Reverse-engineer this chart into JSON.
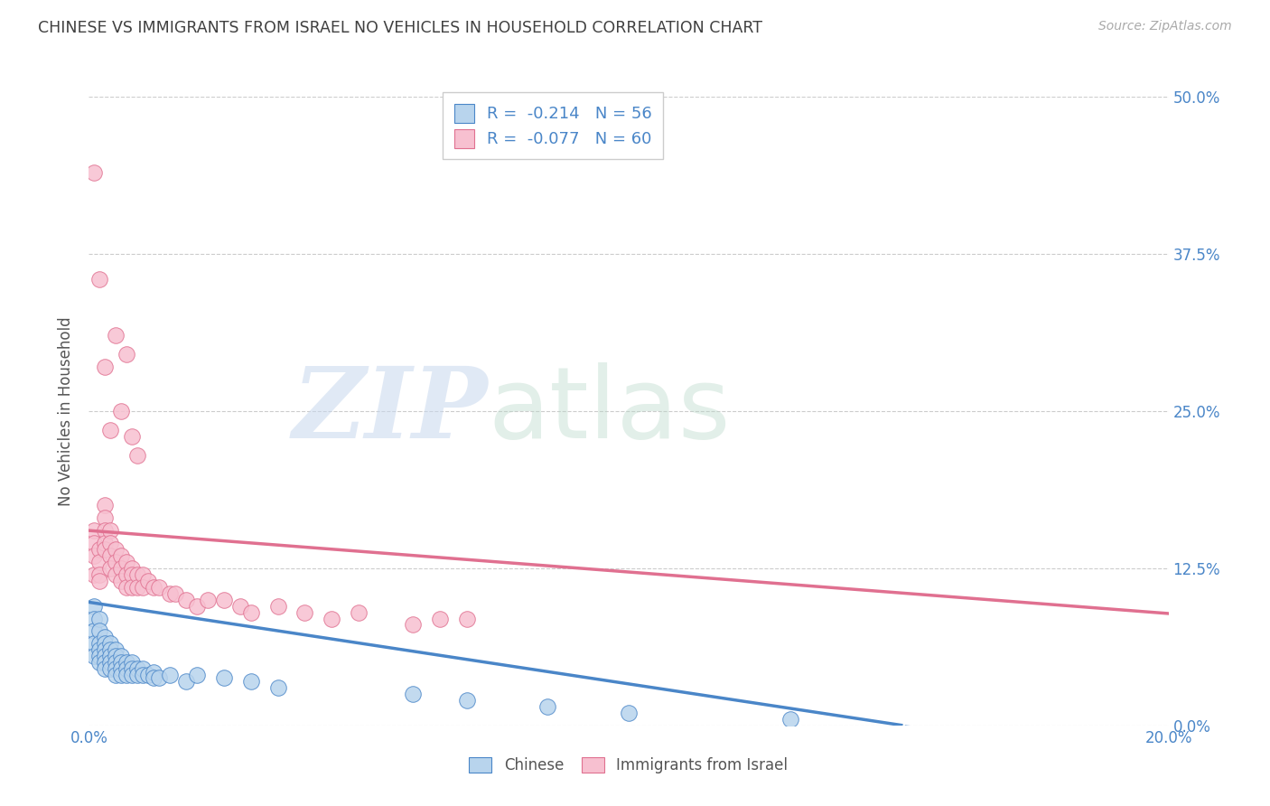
{
  "title": "CHINESE VS IMMIGRANTS FROM ISRAEL NO VEHICLES IN HOUSEHOLD CORRELATION CHART",
  "source": "Source: ZipAtlas.com",
  "ylabel": "No Vehicles in Household",
  "watermark_zip": "ZIP",
  "watermark_atlas": "atlas",
  "xlim": [
    0.0,
    0.2
  ],
  "ylim": [
    0.0,
    0.5
  ],
  "xtick_positions": [
    0.0,
    0.2
  ],
  "xtick_labels": [
    "0.0%",
    "20.0%"
  ],
  "ytick_positions": [
    0.0,
    0.125,
    0.25,
    0.375,
    0.5
  ],
  "ytick_labels": [
    "0.0%",
    "12.5%",
    "25.0%",
    "37.5%",
    "50.0%"
  ],
  "legend_labels": [
    "Chinese",
    "Immigrants from Israel"
  ],
  "series1_facecolor": "#b8d4ed",
  "series2_facecolor": "#f7c0d0",
  "line1_color": "#4a86c8",
  "line2_color": "#e07090",
  "R1": -0.214,
  "N1": 56,
  "R2": -0.077,
  "N2": 60,
  "background_color": "#ffffff",
  "grid_color": "#cccccc",
  "title_color": "#404040",
  "tick_color": "#4a86c8",
  "source_color": "#aaaaaa",
  "ylabel_color": "#555555",
  "line1_intercept": 0.098,
  "line1_slope": -0.65,
  "line2_intercept": 0.155,
  "line2_slope": -0.33,
  "chinese_x": [
    0.001,
    0.001,
    0.001,
    0.001,
    0.001,
    0.002,
    0.002,
    0.002,
    0.002,
    0.002,
    0.002,
    0.003,
    0.003,
    0.003,
    0.003,
    0.003,
    0.003,
    0.004,
    0.004,
    0.004,
    0.004,
    0.004,
    0.005,
    0.005,
    0.005,
    0.005,
    0.005,
    0.006,
    0.006,
    0.006,
    0.006,
    0.007,
    0.007,
    0.007,
    0.008,
    0.008,
    0.008,
    0.009,
    0.009,
    0.01,
    0.01,
    0.011,
    0.012,
    0.012,
    0.013,
    0.015,
    0.018,
    0.02,
    0.025,
    0.03,
    0.035,
    0.06,
    0.07,
    0.085,
    0.1,
    0.13
  ],
  "chinese_y": [
    0.095,
    0.085,
    0.075,
    0.065,
    0.055,
    0.085,
    0.075,
    0.065,
    0.06,
    0.055,
    0.05,
    0.07,
    0.065,
    0.06,
    0.055,
    0.05,
    0.045,
    0.065,
    0.06,
    0.055,
    0.05,
    0.045,
    0.06,
    0.055,
    0.05,
    0.045,
    0.04,
    0.055,
    0.05,
    0.045,
    0.04,
    0.05,
    0.045,
    0.04,
    0.05,
    0.045,
    0.04,
    0.045,
    0.04,
    0.045,
    0.04,
    0.04,
    0.042,
    0.038,
    0.038,
    0.04,
    0.035,
    0.04,
    0.038,
    0.035,
    0.03,
    0.025,
    0.02,
    0.015,
    0.01,
    0.005
  ],
  "israel_x": [
    0.001,
    0.001,
    0.001,
    0.001,
    0.002,
    0.002,
    0.002,
    0.002,
    0.003,
    0.003,
    0.003,
    0.003,
    0.003,
    0.004,
    0.004,
    0.004,
    0.004,
    0.005,
    0.005,
    0.005,
    0.006,
    0.006,
    0.006,
    0.007,
    0.007,
    0.007,
    0.008,
    0.008,
    0.008,
    0.009,
    0.009,
    0.01,
    0.01,
    0.011,
    0.012,
    0.013,
    0.015,
    0.016,
    0.018,
    0.02,
    0.022,
    0.025,
    0.028,
    0.03,
    0.035,
    0.04,
    0.045,
    0.05,
    0.06,
    0.065,
    0.07,
    0.001,
    0.002,
    0.003,
    0.004,
    0.005,
    0.006,
    0.007,
    0.008,
    0.009
  ],
  "israel_y": [
    0.155,
    0.145,
    0.135,
    0.12,
    0.14,
    0.13,
    0.12,
    0.115,
    0.175,
    0.165,
    0.155,
    0.145,
    0.14,
    0.155,
    0.145,
    0.135,
    0.125,
    0.14,
    0.13,
    0.12,
    0.135,
    0.125,
    0.115,
    0.13,
    0.12,
    0.11,
    0.125,
    0.12,
    0.11,
    0.12,
    0.11,
    0.12,
    0.11,
    0.115,
    0.11,
    0.11,
    0.105,
    0.105,
    0.1,
    0.095,
    0.1,
    0.1,
    0.095,
    0.09,
    0.095,
    0.09,
    0.085,
    0.09,
    0.08,
    0.085,
    0.085,
    0.44,
    0.355,
    0.285,
    0.235,
    0.31,
    0.25,
    0.295,
    0.23,
    0.215
  ]
}
